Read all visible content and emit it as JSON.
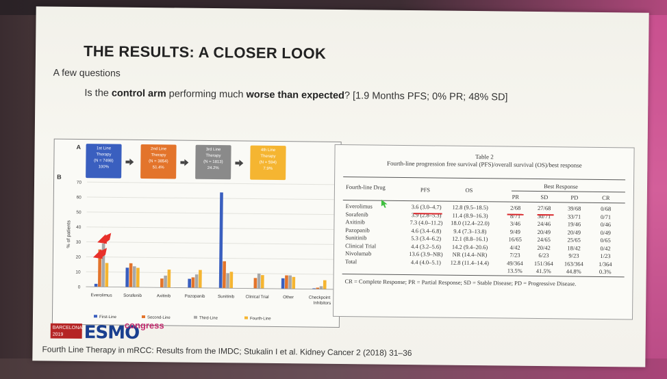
{
  "slide": {
    "title": "THE RESULTS: A CLOSER LOOK",
    "subtitle": "A few questions",
    "question_pre": "Is the ",
    "question_bold1": "control arm",
    "question_mid": " performing much ",
    "question_bold2": "worse than expected",
    "question_post": "? [1.9 Months PFS; 0% PR; 48% SD]",
    "footer": "Fourth Line Therapy in mRCC: Results from the IMDC; Stukalin I et al. Kidney Cancer 2 (2018) 31–36"
  },
  "logo": {
    "barcelona": "BARCELONA",
    "year": "2019",
    "esmo": "ESMO",
    "congress": "congress"
  },
  "figure": {
    "label_a": "A",
    "label_b": "B",
    "flow": [
      {
        "line1": "1st Line",
        "line2": "Therapy",
        "n": "(N = 7498)",
        "pct": "100%",
        "color": "#3a5fbf"
      },
      {
        "line1": "2nd Line",
        "line2": "Therapy",
        "n": "(N = 3854)",
        "pct": "51.4%",
        "color": "#e3742b"
      },
      {
        "line1": "3rd Line",
        "line2": "Therapy",
        "n": "(N = 1813)",
        "pct": "24.2%",
        "color": "#8a8a8a"
      },
      {
        "line1": "4th Line",
        "line2": "Therapy",
        "n": "(N = 594)",
        "pct": "7.9%",
        "color": "#f5b531"
      }
    ]
  },
  "chart_data": {
    "type": "bar",
    "ylabel": "% of patients",
    "ylim": [
      0,
      70
    ],
    "yticks": [
      "0",
      "10",
      "20",
      "30",
      "40",
      "50",
      "60",
      "70"
    ],
    "categories": [
      "Everolimus",
      "Sorafenib",
      "Axitinib",
      "Pazopanib",
      "Sunitinib",
      "Clinical Trial",
      "Other",
      "Checkpoint Inhibitors"
    ],
    "series": [
      {
        "name": "First-Line",
        "color": "#3a5fbf",
        "values": [
          2,
          13,
          0,
          6,
          64,
          0,
          7,
          0.5
        ]
      },
      {
        "name": "Second-Line",
        "color": "#e3742b",
        "values": [
          25,
          16,
          6,
          7,
          18,
          7,
          9,
          1
        ]
      },
      {
        "name": "Third-Line",
        "color": "#a8a8a8",
        "values": [
          29,
          14,
          8,
          9,
          10,
          10,
          9,
          2
        ]
      },
      {
        "name": "Fourth-Line",
        "color": "#f5b531",
        "values": [
          16,
          13,
          12,
          12,
          11,
          9,
          8,
          6
        ]
      }
    ],
    "grid": true,
    "legend": "bottom"
  },
  "table": {
    "title1": "Table 2",
    "title2": "Fourth-line progression free survival (PFS)/overall survival (OS)/best response",
    "headers": {
      "drug": "Fourth-line Drug",
      "pfs": "PFS",
      "os": "OS",
      "best": "Best Response",
      "pr": "PR",
      "sd": "SD",
      "pd": "PD",
      "cr": "CR"
    },
    "rows": [
      {
        "drug": "Everolimus",
        "pfs": "3.6 (3.0–4.7)",
        "os": "12.8 (9.5–18.5)",
        "pr": "2/68",
        "sd": "27/68",
        "pd": "39/68",
        "cr": "0/68"
      },
      {
        "drug": "Sorafenib",
        "pfs": "3.9 (2.8–5.3)",
        "os": "11.4 (8.9–16.3)",
        "pr": "8/71",
        "sd": "30/71",
        "pd": "33/71",
        "cr": "0/71"
      },
      {
        "drug": "Axitinib",
        "pfs": "7.3 (4.0–11.2)",
        "os": "18.0 (12.4–22.0)",
        "pr": "3/46",
        "sd": "24/46",
        "pd": "19/46",
        "cr": "0/46"
      },
      {
        "drug": "Pazopanib",
        "pfs": "4.6 (3.4–6.8)",
        "os": "9.4 (7.3–13.8)",
        "pr": "9/49",
        "sd": "20/49",
        "pd": "20/49",
        "cr": "0/49"
      },
      {
        "drug": "Sunitinib",
        "pfs": "5.3 (3.4–6.2)",
        "os": "12.1 (8.8–16.1)",
        "pr": "16/65",
        "sd": "24/65",
        "pd": "25/65",
        "cr": "0/65"
      },
      {
        "drug": "Clinical Trial",
        "pfs": "4.4 (3.2–5.6)",
        "os": "14.2 (9.4–20.6)",
        "pr": "4/42",
        "sd": "20/42",
        "pd": "18/42",
        "cr": "0/42"
      },
      {
        "drug": "Nivolumab",
        "pfs": "13.6 (3.9–NR)",
        "os": "NR (14.4–NR)",
        "pr": "7/23",
        "sd": "6/23",
        "pd": "9/23",
        "cr": "1/23"
      },
      {
        "drug": "Total",
        "pfs": "4.4 (4.0–5.1)",
        "os": "12.8 (11.4–14.4)",
        "pr": "49/364",
        "sd": "151/364",
        "pd": "163/364",
        "cr": "1/364"
      }
    ],
    "pct_row": {
      "pr": "13.5%",
      "sd": "41.5%",
      "pd": "44.8%",
      "cr": "0.3%"
    },
    "footnote": "CR = Complete Response; PR = Partial Response; SD = Stable Disease; PD = Progressive Disease."
  }
}
